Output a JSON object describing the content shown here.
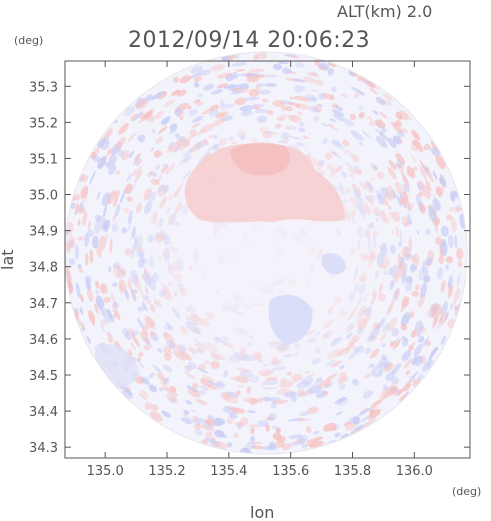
{
  "header": {
    "altitude_label": "ALT(km) 2.0",
    "timestamp": "2012/09/14 20:06:23"
  },
  "chart_data": {
    "type": "heatmap",
    "xlabel": "lon",
    "ylabel": "lat",
    "x_unit": "(deg)",
    "y_unit": "(deg)",
    "x_ticks": [
      "135.0",
      "135.2",
      "135.4",
      "135.6",
      "135.8",
      "136.0"
    ],
    "y_ticks": [
      "34.3",
      "34.4",
      "34.5",
      "34.6",
      "34.7",
      "34.8",
      "34.9",
      "35.0",
      "35.1",
      "35.2",
      "35.3"
    ],
    "xlim": [
      134.87,
      136.18
    ],
    "ylim": [
      34.27,
      35.37
    ],
    "scan_center": {
      "lon": 135.52,
      "lat": 34.82
    },
    "colors": {
      "positive": "#f6c4c4",
      "negative": "#c9cdf5",
      "background": "#f3f3fb",
      "frame": "#555555"
    }
  }
}
